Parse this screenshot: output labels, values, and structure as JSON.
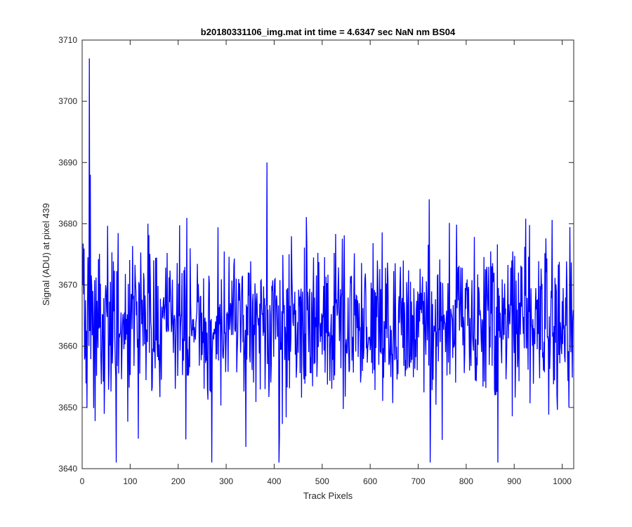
{
  "chart_data": {
    "type": "line",
    "title": "b20180331106_img.mat int time = 4.6347 sec  NaN nm BS04",
    "xlabel": "Track Pixels",
    "ylabel": "Signal (ADU) at pixel 439",
    "xlim": [
      0,
      1024
    ],
    "ylim": [
      3640,
      3710
    ],
    "xticks": [
      0,
      100,
      200,
      300,
      400,
      500,
      600,
      700,
      800,
      900,
      1000
    ],
    "yticks": [
      3640,
      3650,
      3660,
      3670,
      3680,
      3690,
      3700,
      3710
    ],
    "grid": false,
    "line_color": "#0000ff",
    "series": [
      {
        "n_points": 1024,
        "x_start": 1,
        "x_step": 1,
        "mean": 3664,
        "std": 6.5,
        "y_min": 3641,
        "y_max": 3707,
        "notable_points": [
          {
            "x": 15,
            "y": 3707
          },
          {
            "x": 17,
            "y": 3688
          },
          {
            "x": 385,
            "y": 3690
          },
          {
            "x": 71,
            "y": 3641
          },
          {
            "x": 270,
            "y": 3641
          },
          {
            "x": 410,
            "y": 3641
          },
          {
            "x": 725,
            "y": 3641
          },
          {
            "x": 866,
            "y": 3641
          }
        ]
      }
    ]
  }
}
